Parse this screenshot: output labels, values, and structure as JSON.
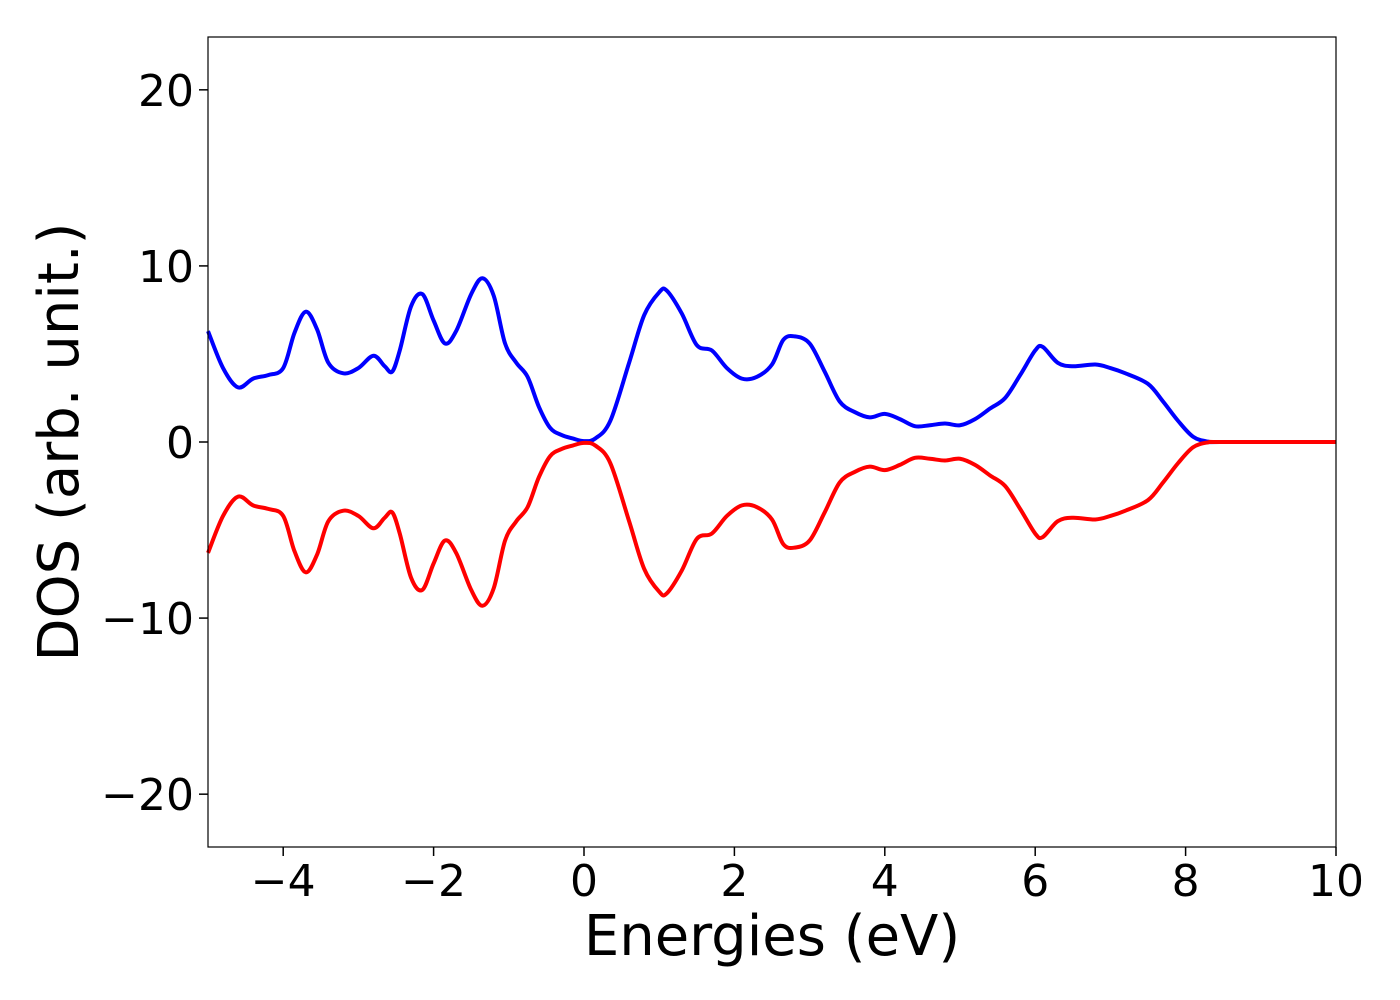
{
  "chart_data": {
    "type": "line",
    "title": "",
    "xlabel": "Energies (eV)",
    "ylabel": "DOS (arb. unit.)",
    "xlim": [
      -5,
      10
    ],
    "ylim": [
      -23,
      23
    ],
    "grid": false,
    "legend": "none",
    "x_ticks": [
      -4,
      -2,
      0,
      2,
      4,
      6,
      8,
      10
    ],
    "y_ticks": [
      -20,
      -10,
      0,
      10,
      20
    ],
    "series": [
      {
        "color": "#0000ff",
        "points": [
          [
            -5.0,
            6.3
          ],
          [
            -4.8,
            4.2
          ],
          [
            -4.6,
            3.1
          ],
          [
            -4.4,
            3.6
          ],
          [
            -4.2,
            3.8
          ],
          [
            -4.0,
            4.2
          ],
          [
            -3.85,
            6.2
          ],
          [
            -3.7,
            7.4
          ],
          [
            -3.55,
            6.4
          ],
          [
            -3.4,
            4.5
          ],
          [
            -3.2,
            3.9
          ],
          [
            -3.0,
            4.2
          ],
          [
            -2.8,
            4.9
          ],
          [
            -2.65,
            4.3
          ],
          [
            -2.55,
            4.0
          ],
          [
            -2.45,
            5.2
          ],
          [
            -2.3,
            7.7
          ],
          [
            -2.15,
            8.4
          ],
          [
            -2.0,
            6.9
          ],
          [
            -1.85,
            5.6
          ],
          [
            -1.7,
            6.3
          ],
          [
            -1.5,
            8.4
          ],
          [
            -1.35,
            9.3
          ],
          [
            -1.2,
            8.3
          ],
          [
            -1.05,
            5.6
          ],
          [
            -0.9,
            4.5
          ],
          [
            -0.75,
            3.7
          ],
          [
            -0.6,
            2.0
          ],
          [
            -0.45,
            0.8
          ],
          [
            -0.3,
            0.4
          ],
          [
            -0.15,
            0.2
          ],
          [
            0.0,
            0.05
          ],
          [
            0.15,
            0.2
          ],
          [
            0.35,
            1.2
          ],
          [
            0.6,
            4.5
          ],
          [
            0.8,
            7.2
          ],
          [
            1.0,
            8.5
          ],
          [
            1.1,
            8.6
          ],
          [
            1.3,
            7.3
          ],
          [
            1.5,
            5.5
          ],
          [
            1.7,
            5.2
          ],
          [
            1.9,
            4.2
          ],
          [
            2.1,
            3.6
          ],
          [
            2.3,
            3.7
          ],
          [
            2.5,
            4.4
          ],
          [
            2.65,
            5.8
          ],
          [
            2.8,
            6.0
          ],
          [
            3.0,
            5.6
          ],
          [
            3.2,
            4.0
          ],
          [
            3.4,
            2.3
          ],
          [
            3.6,
            1.7
          ],
          [
            3.8,
            1.4
          ],
          [
            4.0,
            1.6
          ],
          [
            4.2,
            1.3
          ],
          [
            4.4,
            0.9
          ],
          [
            4.6,
            0.95
          ],
          [
            4.8,
            1.05
          ],
          [
            5.0,
            0.95
          ],
          [
            5.2,
            1.3
          ],
          [
            5.4,
            1.9
          ],
          [
            5.6,
            2.5
          ],
          [
            5.8,
            3.8
          ],
          [
            6.0,
            5.2
          ],
          [
            6.1,
            5.4
          ],
          [
            6.3,
            4.5
          ],
          [
            6.5,
            4.3
          ],
          [
            6.8,
            4.4
          ],
          [
            7.0,
            4.2
          ],
          [
            7.2,
            3.9
          ],
          [
            7.5,
            3.3
          ],
          [
            7.7,
            2.3
          ],
          [
            7.9,
            1.2
          ],
          [
            8.1,
            0.3
          ],
          [
            8.3,
            0.02
          ],
          [
            8.5,
            0.0
          ],
          [
            10.0,
            0.0
          ]
        ]
      },
      {
        "color": "#ff0000",
        "points": [
          [
            -5.0,
            -6.3
          ],
          [
            -4.8,
            -4.2
          ],
          [
            -4.6,
            -3.1
          ],
          [
            -4.4,
            -3.6
          ],
          [
            -4.2,
            -3.8
          ],
          [
            -4.0,
            -4.2
          ],
          [
            -3.85,
            -6.2
          ],
          [
            -3.7,
            -7.4
          ],
          [
            -3.55,
            -6.4
          ],
          [
            -3.4,
            -4.5
          ],
          [
            -3.2,
            -3.9
          ],
          [
            -3.0,
            -4.2
          ],
          [
            -2.8,
            -4.9
          ],
          [
            -2.65,
            -4.3
          ],
          [
            -2.55,
            -4.0
          ],
          [
            -2.45,
            -5.2
          ],
          [
            -2.3,
            -7.7
          ],
          [
            -2.15,
            -8.4
          ],
          [
            -2.0,
            -6.9
          ],
          [
            -1.85,
            -5.6
          ],
          [
            -1.7,
            -6.3
          ],
          [
            -1.5,
            -8.4
          ],
          [
            -1.35,
            -9.3
          ],
          [
            -1.2,
            -8.3
          ],
          [
            -1.05,
            -5.6
          ],
          [
            -0.9,
            -4.5
          ],
          [
            -0.75,
            -3.7
          ],
          [
            -0.6,
            -2.0
          ],
          [
            -0.45,
            -0.8
          ],
          [
            -0.3,
            -0.4
          ],
          [
            -0.15,
            -0.2
          ],
          [
            0.0,
            -0.05
          ],
          [
            0.15,
            -0.2
          ],
          [
            0.35,
            -1.2
          ],
          [
            0.6,
            -4.5
          ],
          [
            0.8,
            -7.2
          ],
          [
            1.0,
            -8.5
          ],
          [
            1.1,
            -8.6
          ],
          [
            1.3,
            -7.3
          ],
          [
            1.5,
            -5.5
          ],
          [
            1.7,
            -5.2
          ],
          [
            1.9,
            -4.2
          ],
          [
            2.1,
            -3.6
          ],
          [
            2.3,
            -3.7
          ],
          [
            2.5,
            -4.4
          ],
          [
            2.65,
            -5.8
          ],
          [
            2.8,
            -6.0
          ],
          [
            3.0,
            -5.6
          ],
          [
            3.2,
            -4.0
          ],
          [
            3.4,
            -2.3
          ],
          [
            3.6,
            -1.7
          ],
          [
            3.8,
            -1.4
          ],
          [
            4.0,
            -1.6
          ],
          [
            4.2,
            -1.3
          ],
          [
            4.4,
            -0.9
          ],
          [
            4.6,
            -0.95
          ],
          [
            4.8,
            -1.05
          ],
          [
            5.0,
            -0.95
          ],
          [
            5.2,
            -1.3
          ],
          [
            5.4,
            -1.9
          ],
          [
            5.6,
            -2.5
          ],
          [
            5.8,
            -3.8
          ],
          [
            6.0,
            -5.2
          ],
          [
            6.1,
            -5.4
          ],
          [
            6.3,
            -4.5
          ],
          [
            6.5,
            -4.3
          ],
          [
            6.8,
            -4.4
          ],
          [
            7.0,
            -4.2
          ],
          [
            7.2,
            -3.9
          ],
          [
            7.5,
            -3.3
          ],
          [
            7.7,
            -2.3
          ],
          [
            7.9,
            -1.2
          ],
          [
            8.1,
            -0.3
          ],
          [
            8.3,
            -0.02
          ],
          [
            8.5,
            0.0
          ],
          [
            10.0,
            0.0
          ]
        ]
      }
    ]
  }
}
